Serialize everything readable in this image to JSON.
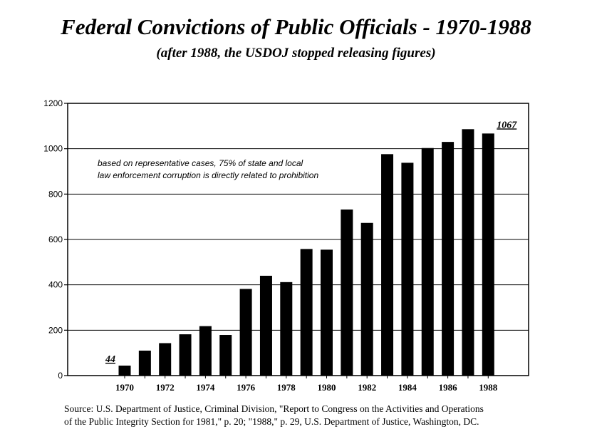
{
  "title": "Federal Convictions of Public Officials  -  1970-1988",
  "subtitle": "(after 1988, the USDOJ stopped releasing figures)",
  "annotation_lines": [
    "based on representative cases, 75% of state and local",
    "law enforcement corruption is directly related to prohibition"
  ],
  "source_lines": [
    "Source:  U.S. Department of Justice, Criminal Division, \"Report to Congress on the Activities and Operations",
    "of the Public Integrity Section for 1981,\" p. 20; \"1988,\" p. 29, U.S. Department of Justice, Washington, DC."
  ],
  "chart_data": {
    "type": "bar",
    "title": "Federal Convictions of Public Officials  -  1970-1988",
    "xlabel": "",
    "ylabel": "",
    "categories": [
      "1970",
      "1971",
      "1972",
      "1973",
      "1974",
      "1975",
      "1976",
      "1977",
      "1978",
      "1979",
      "1980",
      "1981",
      "1982",
      "1983",
      "1984",
      "1985",
      "1986",
      "1987",
      "1988"
    ],
    "values": [
      44,
      110,
      143,
      182,
      218,
      179,
      382,
      440,
      412,
      558,
      555,
      732,
      673,
      976,
      938,
      1003,
      1030,
      1086,
      1067
    ],
    "x_tick_labels": [
      "1970",
      "1972",
      "1974",
      "1976",
      "1978",
      "1980",
      "1982",
      "1984",
      "1986",
      "1988"
    ],
    "y_ticks": [
      "0",
      "200",
      "400",
      "600",
      "800",
      "1000",
      "1200"
    ],
    "ylim": [
      0,
      1200
    ],
    "grid": true,
    "data_labels": [
      {
        "category": "1970",
        "text": "44"
      },
      {
        "category": "1988",
        "text": "1067"
      }
    ],
    "bar_color": "#000000"
  }
}
